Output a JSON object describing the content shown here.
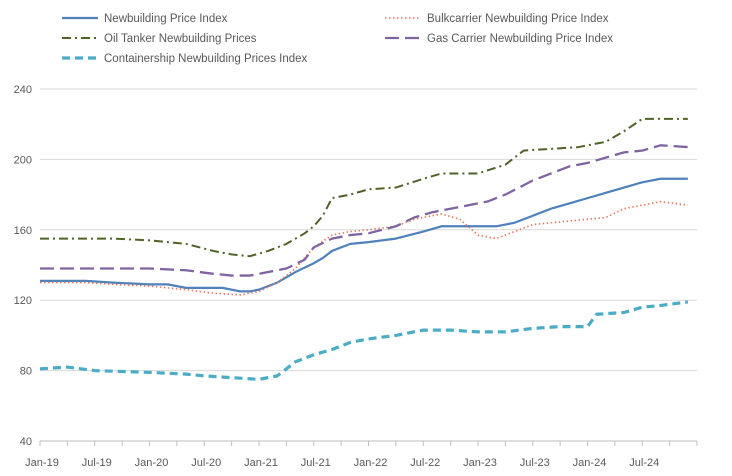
{
  "chart_data": {
    "type": "line",
    "title": "",
    "xlabel": "",
    "ylabel": "",
    "ylim": [
      40,
      240
    ],
    "yticks": [
      40,
      80,
      120,
      160,
      200,
      240
    ],
    "x_tick_labels": [
      "Jan-19",
      "Jul-19",
      "Jan-20",
      "Jul-20",
      "Jan-21",
      "Jul-21",
      "Jan-22",
      "Jul-22",
      "Jan-23",
      "Jul-23",
      "Jan-24",
      "Jul-24"
    ],
    "grid": "horizontal",
    "legend_position": "top",
    "x_start": "2019-01",
    "x_end": "2024-12",
    "series": [
      {
        "name": "Newbuilding Price Index",
        "color": "#4f81bd",
        "style": "solid",
        "points": [
          [
            "2019-01",
            131
          ],
          [
            "2019-06",
            131
          ],
          [
            "2019-09",
            130
          ],
          [
            "2020-01",
            129
          ],
          [
            "2020-03",
            129
          ],
          [
            "2020-05",
            127
          ],
          [
            "2020-09",
            127
          ],
          [
            "2020-11",
            125
          ],
          [
            "2020-12",
            125
          ],
          [
            "2021-01",
            126
          ],
          [
            "2021-03",
            130
          ],
          [
            "2021-05",
            136
          ],
          [
            "2021-07",
            141
          ],
          [
            "2021-08",
            144
          ],
          [
            "2021-09",
            148
          ],
          [
            "2021-11",
            152
          ],
          [
            "2022-01",
            153
          ],
          [
            "2022-04",
            155
          ],
          [
            "2022-07",
            159
          ],
          [
            "2022-09",
            162
          ],
          [
            "2022-12",
            162
          ],
          [
            "2023-03",
            162
          ],
          [
            "2023-05",
            164
          ],
          [
            "2023-07",
            168
          ],
          [
            "2023-09",
            172
          ],
          [
            "2023-11",
            175
          ],
          [
            "2024-01",
            178
          ],
          [
            "2024-03",
            181
          ],
          [
            "2024-05",
            184
          ],
          [
            "2024-07",
            187
          ],
          [
            "2024-09",
            189
          ],
          [
            "2024-12",
            189
          ]
        ]
      },
      {
        "name": "Bulkcarrier Newbuilding Price Index",
        "color": "#e07a5f",
        "style": "dotted",
        "points": [
          [
            "2019-01",
            130
          ],
          [
            "2019-06",
            130
          ],
          [
            "2019-09",
            129
          ],
          [
            "2020-01",
            128
          ],
          [
            "2020-05",
            126
          ],
          [
            "2020-08",
            124
          ],
          [
            "2020-11",
            123
          ],
          [
            "2021-01",
            125
          ],
          [
            "2021-03",
            130
          ],
          [
            "2021-05",
            138
          ],
          [
            "2021-07",
            150
          ],
          [
            "2021-09",
            157
          ],
          [
            "2021-11",
            159
          ],
          [
            "2022-01",
            160
          ],
          [
            "2022-04",
            162
          ],
          [
            "2022-06",
            166
          ],
          [
            "2022-09",
            169
          ],
          [
            "2022-11",
            166
          ],
          [
            "2023-01",
            157
          ],
          [
            "2023-03",
            155
          ],
          [
            "2023-05",
            159
          ],
          [
            "2023-07",
            163
          ],
          [
            "2023-09",
            164
          ],
          [
            "2024-01",
            166
          ],
          [
            "2024-03",
            167
          ],
          [
            "2024-05",
            172
          ],
          [
            "2024-07",
            174
          ],
          [
            "2024-09",
            176
          ],
          [
            "2024-12",
            174
          ]
        ]
      },
      {
        "name": "Oil Tanker Newbuilding Prices",
        "color": "#4f6228",
        "style": "dashdot",
        "points": [
          [
            "2019-01",
            155
          ],
          [
            "2019-06",
            155
          ],
          [
            "2019-09",
            155
          ],
          [
            "2020-01",
            154
          ],
          [
            "2020-05",
            152
          ],
          [
            "2020-08",
            148
          ],
          [
            "2020-10",
            146
          ],
          [
            "2020-12",
            145
          ],
          [
            "2021-02",
            148
          ],
          [
            "2021-04",
            152
          ],
          [
            "2021-06",
            158
          ],
          [
            "2021-07",
            162
          ],
          [
            "2021-08",
            168
          ],
          [
            "2021-09",
            178
          ],
          [
            "2021-11",
            180
          ],
          [
            "2022-01",
            183
          ],
          [
            "2022-04",
            184
          ],
          [
            "2022-07",
            189
          ],
          [
            "2022-09",
            192
          ],
          [
            "2023-01",
            192
          ],
          [
            "2023-04",
            197
          ],
          [
            "2023-06",
            205
          ],
          [
            "2023-09",
            206
          ],
          [
            "2023-12",
            207
          ],
          [
            "2024-03",
            210
          ],
          [
            "2024-05",
            216
          ],
          [
            "2024-07",
            223
          ],
          [
            "2024-12",
            223
          ]
        ]
      },
      {
        "name": "Gas Carrier Newbuilding Price Index",
        "color": "#8064a2",
        "style": "longdash",
        "points": [
          [
            "2019-01",
            138
          ],
          [
            "2019-06",
            138
          ],
          [
            "2020-01",
            138
          ],
          [
            "2020-05",
            137
          ],
          [
            "2020-08",
            135
          ],
          [
            "2020-10",
            134
          ],
          [
            "2020-12",
            134
          ],
          [
            "2021-02",
            136
          ],
          [
            "2021-04",
            138
          ],
          [
            "2021-06",
            143
          ],
          [
            "2021-07",
            150
          ],
          [
            "2021-09",
            155
          ],
          [
            "2021-11",
            157
          ],
          [
            "2022-01",
            158
          ],
          [
            "2022-04",
            162
          ],
          [
            "2022-06",
            167
          ],
          [
            "2022-08",
            170
          ],
          [
            "2022-11",
            173
          ],
          [
            "2023-02",
            176
          ],
          [
            "2023-04",
            180
          ],
          [
            "2023-07",
            188
          ],
          [
            "2023-09",
            192
          ],
          [
            "2023-11",
            196
          ],
          [
            "2024-01",
            198
          ],
          [
            "2024-03",
            201
          ],
          [
            "2024-05",
            204
          ],
          [
            "2024-07",
            205
          ],
          [
            "2024-09",
            208
          ],
          [
            "2024-12",
            207
          ]
        ]
      },
      {
        "name": "Containership Newbuilding Prices Index",
        "color": "#4bacc6",
        "style": "dashed",
        "points": [
          [
            "2019-01",
            81
          ],
          [
            "2019-04",
            82
          ],
          [
            "2019-07",
            80
          ],
          [
            "2020-01",
            79
          ],
          [
            "2020-05",
            78
          ],
          [
            "2020-07",
            77
          ],
          [
            "2020-10",
            76
          ],
          [
            "2021-01",
            75
          ],
          [
            "2021-03",
            77
          ],
          [
            "2021-05",
            85
          ],
          [
            "2021-07",
            89
          ],
          [
            "2021-09",
            92
          ],
          [
            "2021-11",
            96
          ],
          [
            "2022-01",
            98
          ],
          [
            "2022-04",
            100
          ],
          [
            "2022-07",
            103
          ],
          [
            "2022-10",
            103
          ],
          [
            "2023-01",
            102
          ],
          [
            "2023-04",
            102
          ],
          [
            "2023-07",
            104
          ],
          [
            "2023-10",
            105
          ],
          [
            "2024-01",
            105
          ],
          [
            "2024-02",
            112
          ],
          [
            "2024-05",
            113
          ],
          [
            "2024-07",
            116
          ],
          [
            "2024-09",
            117
          ],
          [
            "2024-12",
            119
          ]
        ]
      }
    ]
  }
}
